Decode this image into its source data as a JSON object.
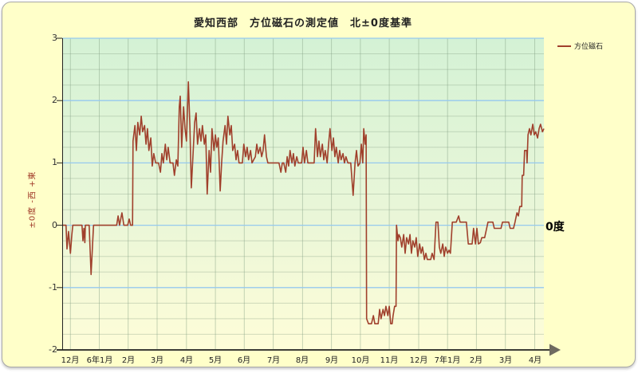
{
  "window": {
    "panel_bg": "#FFFFC9",
    "panel_border": "#A8A8A8",
    "outer_bg": "#FFFFFF"
  },
  "annotations": {
    "zero_degree": "0度"
  },
  "colors": {
    "line": "#A0402C",
    "major_grid": "#96C9EE",
    "minor_grid": "rgba(125,150,125,0.33)",
    "vertical_grid": "rgba(130,160,130,0.45)",
    "plot_gradient_top": "#D4F2D5",
    "plot_gradient_mid": "#E9F6D8",
    "plot_gradient_bottom": "#FEFDD8",
    "axis": "#222222",
    "arrow": "#6E6A60"
  },
  "chart_data": {
    "type": "line",
    "title": "愛知西部　方位磁石の測定値　北±0度基準",
    "ylabel": "±0度 -西 +東",
    "ylim": [
      -2,
      3
    ],
    "y_ticks": [
      "3",
      "2",
      "1",
      "0",
      "-1",
      "-2"
    ],
    "minor_grid_step": 0.25,
    "grid": true,
    "legend_position": "top-right",
    "x_tick_labels": [
      "12月",
      "6年1月",
      "2月",
      "3月",
      "4月",
      "5月",
      "6月",
      "7月",
      "8月",
      "9月",
      "10月",
      "11月",
      "12月",
      "7年1月",
      "2月",
      "3月",
      "4月"
    ],
    "x_tick_pos": [
      0.017,
      0.077,
      0.137,
      0.197,
      0.258,
      0.318,
      0.378,
      0.438,
      0.499,
      0.559,
      0.619,
      0.679,
      0.74,
      0.8,
      0.86,
      0.92,
      0.981
    ],
    "series": [
      {
        "name": "方位磁石",
        "points": [
          [
            0.0,
            0
          ],
          [
            0.008,
            0
          ],
          [
            0.01,
            -0.38
          ],
          [
            0.013,
            -0.1
          ],
          [
            0.017,
            -0.45
          ],
          [
            0.02,
            -0.15
          ],
          [
            0.022,
            0
          ],
          [
            0.041,
            0
          ],
          [
            0.043,
            -0.25
          ],
          [
            0.045,
            -0.05
          ],
          [
            0.047,
            -0.28
          ],
          [
            0.048,
            0
          ],
          [
            0.056,
            0
          ],
          [
            0.06,
            -0.79
          ],
          [
            0.063,
            -0.3
          ],
          [
            0.065,
            0
          ],
          [
            0.113,
            0
          ],
          [
            0.116,
            0.15
          ],
          [
            0.119,
            0
          ],
          [
            0.124,
            0.2
          ],
          [
            0.128,
            0
          ],
          [
            0.136,
            0
          ],
          [
            0.139,
            0.1
          ],
          [
            0.142,
            0
          ],
          [
            0.146,
            0
          ],
          [
            0.147,
            1.35
          ],
          [
            0.151,
            1.6
          ],
          [
            0.154,
            1.2
          ],
          [
            0.157,
            1.65
          ],
          [
            0.161,
            1.45
          ],
          [
            0.164,
            1.75
          ],
          [
            0.167,
            1.5
          ],
          [
            0.171,
            1.6
          ],
          [
            0.174,
            1.3
          ],
          [
            0.177,
            1.55
          ],
          [
            0.18,
            1.2
          ],
          [
            0.184,
            1.4
          ],
          [
            0.187,
            0.95
          ],
          [
            0.19,
            1.15
          ],
          [
            0.194,
            1.0
          ],
          [
            0.2,
            1.0
          ],
          [
            0.204,
            0.85
          ],
          [
            0.207,
            1.15
          ],
          [
            0.21,
            1.0
          ],
          [
            0.214,
            1.3
          ],
          [
            0.217,
            1.05
          ],
          [
            0.22,
            1.25
          ],
          [
            0.224,
            1.0
          ],
          [
            0.23,
            1.0
          ],
          [
            0.233,
            0.8
          ],
          [
            0.237,
            1.05
          ],
          [
            0.24,
            0.95
          ],
          [
            0.243,
            1.9
          ],
          [
            0.245,
            2.07
          ],
          [
            0.248,
            1.25
          ],
          [
            0.252,
            1.9
          ],
          [
            0.255,
            1.55
          ],
          [
            0.258,
            1.35
          ],
          [
            0.262,
            2.3
          ],
          [
            0.265,
            1.6
          ],
          [
            0.268,
            0.6
          ],
          [
            0.272,
            1.2
          ],
          [
            0.275,
            1.65
          ],
          [
            0.278,
            1.8
          ],
          [
            0.281,
            1.3
          ],
          [
            0.285,
            1.55
          ],
          [
            0.288,
            1.35
          ],
          [
            0.291,
            1.6
          ],
          [
            0.295,
            1.3
          ],
          [
            0.298,
            1.45
          ],
          [
            0.301,
            0.5
          ],
          [
            0.305,
            1.2
          ],
          [
            0.308,
            0.85
          ],
          [
            0.311,
            1.55
          ],
          [
            0.315,
            1.2
          ],
          [
            0.318,
            1.45
          ],
          [
            0.321,
            1.25
          ],
          [
            0.324,
            1.4
          ],
          [
            0.328,
            0.55
          ],
          [
            0.331,
            1.0
          ],
          [
            0.334,
            1.35
          ],
          [
            0.338,
            1.6
          ],
          [
            0.341,
            1.3
          ],
          [
            0.344,
            1.75
          ],
          [
            0.348,
            1.45
          ],
          [
            0.351,
            1.6
          ],
          [
            0.354,
            1.2
          ],
          [
            0.358,
            1.3
          ],
          [
            0.361,
            1.05
          ],
          [
            0.364,
            1.2
          ],
          [
            0.367,
            1.0
          ],
          [
            0.374,
            1.0
          ],
          [
            0.377,
            1.3
          ],
          [
            0.381,
            1.1
          ],
          [
            0.384,
            1.25
          ],
          [
            0.387,
            1.05
          ],
          [
            0.391,
            1.2
          ],
          [
            0.394,
            1.0
          ],
          [
            0.401,
            1.1
          ],
          [
            0.404,
            1.3
          ],
          [
            0.407,
            1.15
          ],
          [
            0.411,
            1.25
          ],
          [
            0.414,
            1.1
          ],
          [
            0.417,
            1.2
          ],
          [
            0.42,
            1.45
          ],
          [
            0.424,
            1.1
          ],
          [
            0.427,
            1.0
          ],
          [
            0.44,
            1.0
          ],
          [
            0.45,
            1.0
          ],
          [
            0.454,
            0.85
          ],
          [
            0.457,
            1.0
          ],
          [
            0.46,
            1.0
          ],
          [
            0.464,
            0.85
          ],
          [
            0.467,
            1.1
          ],
          [
            0.47,
            0.95
          ],
          [
            0.473,
            1.2
          ],
          [
            0.477,
            1.0
          ],
          [
            0.48,
            1.15
          ],
          [
            0.483,
            0.95
          ],
          [
            0.487,
            1.1
          ],
          [
            0.49,
            1.0
          ],
          [
            0.497,
            1.0
          ],
          [
            0.5,
            1.25
          ],
          [
            0.503,
            1.0
          ],
          [
            0.507,
            1.2
          ],
          [
            0.51,
            1.0
          ],
          [
            0.517,
            1.0
          ],
          [
            0.523,
            1.0
          ],
          [
            0.526,
            1.55
          ],
          [
            0.53,
            1.1
          ],
          [
            0.533,
            1.35
          ],
          [
            0.536,
            1.1
          ],
          [
            0.54,
            1.3
          ],
          [
            0.543,
            1.05
          ],
          [
            0.546,
            1.2
          ],
          [
            0.55,
            1.0
          ],
          [
            0.553,
            1.3
          ],
          [
            0.556,
            1.55
          ],
          [
            0.56,
            1.2
          ],
          [
            0.563,
            1.4
          ],
          [
            0.566,
            1.1
          ],
          [
            0.569,
            1.25
          ],
          [
            0.573,
            1.0
          ],
          [
            0.576,
            1.2
          ],
          [
            0.579,
            1.05
          ],
          [
            0.583,
            1.15
          ],
          [
            0.586,
            1.0
          ],
          [
            0.589,
            1.1
          ],
          [
            0.593,
            1.0
          ],
          [
            0.599,
            1.0
          ],
          [
            0.604,
            0.48
          ],
          [
            0.608,
            1.0
          ],
          [
            0.611,
            1.2
          ],
          [
            0.614,
            0.95
          ],
          [
            0.618,
            1.0
          ],
          [
            0.621,
            1.3
          ],
          [
            0.624,
            1.0
          ],
          [
            0.626,
            1.55
          ],
          [
            0.629,
            1.3
          ],
          [
            0.631,
            1.45
          ],
          [
            0.632,
            -1.5
          ],
          [
            0.636,
            -1.58
          ],
          [
            0.642,
            -1.58
          ],
          [
            0.646,
            -1.45
          ],
          [
            0.649,
            -1.58
          ],
          [
            0.656,
            -1.58
          ],
          [
            0.659,
            -1.35
          ],
          [
            0.662,
            -1.5
          ],
          [
            0.666,
            -1.35
          ],
          [
            0.669,
            -1.45
          ],
          [
            0.672,
            -1.3
          ],
          [
            0.676,
            -1.45
          ],
          [
            0.679,
            -1.3
          ],
          [
            0.682,
            -1.58
          ],
          [
            0.685,
            -1.58
          ],
          [
            0.687,
            -1.45
          ],
          [
            0.69,
            -1.3
          ],
          [
            0.693,
            -1.3
          ],
          [
            0.694,
            0.0
          ],
          [
            0.697,
            -0.25
          ],
          [
            0.699,
            -0.15
          ],
          [
            0.702,
            -0.2
          ],
          [
            0.705,
            -0.35
          ],
          [
            0.709,
            -0.15
          ],
          [
            0.712,
            -0.45
          ],
          [
            0.715,
            -0.2
          ],
          [
            0.719,
            -0.3
          ],
          [
            0.722,
            -0.15
          ],
          [
            0.725,
            -0.45
          ],
          [
            0.728,
            -0.25
          ],
          [
            0.732,
            -0.35
          ],
          [
            0.735,
            -0.2
          ],
          [
            0.738,
            -0.5
          ],
          [
            0.742,
            -0.3
          ],
          [
            0.745,
            -0.45
          ],
          [
            0.748,
            -0.35
          ],
          [
            0.752,
            -0.55
          ],
          [
            0.755,
            -0.45
          ],
          [
            0.758,
            -0.55
          ],
          [
            0.765,
            -0.55
          ],
          [
            0.768,
            -0.45
          ],
          [
            0.772,
            -0.55
          ],
          [
            0.776,
            0.05
          ],
          [
            0.78,
            0.05
          ],
          [
            0.783,
            -0.35
          ],
          [
            0.786,
            -0.45
          ],
          [
            0.79,
            -0.3
          ],
          [
            0.793,
            -0.5
          ],
          [
            0.796,
            -0.35
          ],
          [
            0.8,
            -0.45
          ],
          [
            0.803,
            -0.4
          ],
          [
            0.806,
            -0.45
          ],
          [
            0.81,
            0.05
          ],
          [
            0.818,
            0.05
          ],
          [
            0.823,
            0.15
          ],
          [
            0.826,
            0.05
          ],
          [
            0.839,
            0.05
          ],
          [
            0.843,
            -0.3
          ],
          [
            0.851,
            -0.3
          ],
          [
            0.854,
            -0.05
          ],
          [
            0.858,
            -0.3
          ],
          [
            0.861,
            -0.05
          ],
          [
            0.864,
            -0.3
          ],
          [
            0.868,
            -0.28
          ],
          [
            0.871,
            -0.2
          ],
          [
            0.877,
            -0.2
          ],
          [
            0.884,
            0.05
          ],
          [
            0.894,
            0.05
          ],
          [
            0.897,
            -0.05
          ],
          [
            0.911,
            -0.05
          ],
          [
            0.914,
            0.05
          ],
          [
            0.927,
            0.05
          ],
          [
            0.93,
            -0.05
          ],
          [
            0.937,
            -0.05
          ],
          [
            0.94,
            0.05
          ],
          [
            0.944,
            0.2
          ],
          [
            0.947,
            0.15
          ],
          [
            0.95,
            0.3
          ],
          [
            0.954,
            0.3
          ],
          [
            0.955,
            0.8
          ],
          [
            0.958,
            0.8
          ],
          [
            0.96,
            1.2
          ],
          [
            0.964,
            1.2
          ],
          [
            0.965,
            1.0
          ],
          [
            0.967,
            1.45
          ],
          [
            0.97,
            1.55
          ],
          [
            0.973,
            1.45
          ],
          [
            0.977,
            1.62
          ],
          [
            0.98,
            1.45
          ],
          [
            0.983,
            1.5
          ],
          [
            0.987,
            1.4
          ],
          [
            0.99,
            1.55
          ],
          [
            0.993,
            1.62
          ],
          [
            0.997,
            1.5
          ],
          [
            1.0,
            1.55
          ]
        ]
      }
    ]
  }
}
